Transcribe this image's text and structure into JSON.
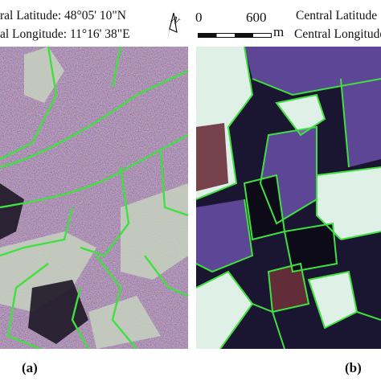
{
  "header": {
    "left_latitude": "ral Latitude: 48°05' 10\"N",
    "left_longitude": "al Longitude: 11°16' 38\"E",
    "right_latitude": "Central Latitude",
    "right_longitude": "Central Longitude",
    "north_arrow_label": "N",
    "scale_start": "0",
    "scale_end": "600",
    "scale_unit": "m"
  },
  "captions": {
    "left": "(a)",
    "right": "(b)"
  },
  "colors": {
    "boundary_green": "#3fe040",
    "sar_noise_purple": "#7a5a80",
    "optical_dark": "#1a1530",
    "optical_bright": "#dff0e6"
  },
  "icons": {
    "north_arrow": "north-arrow-icon",
    "scale_bar": "scale-bar-icon"
  }
}
